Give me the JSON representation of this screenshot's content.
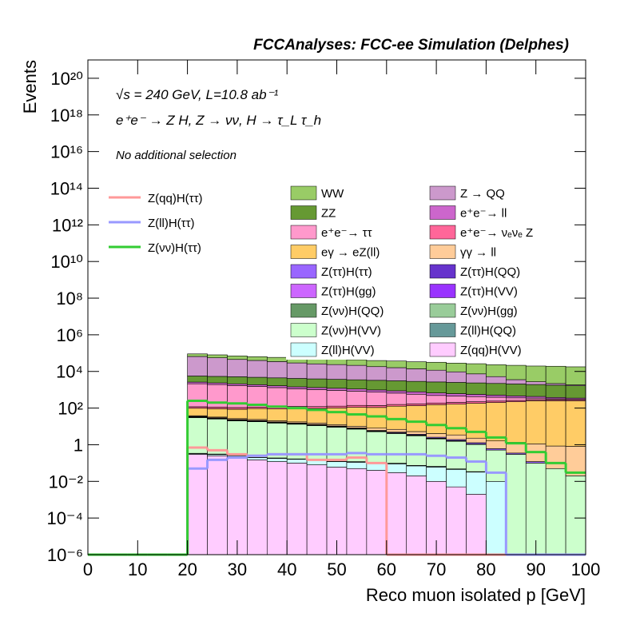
{
  "chart_data": {
    "type": "stacked-histogram",
    "title": "FCCAnalyses: FCC-ee Simulation (Delphes)",
    "annotations": [
      "√s = 240 GeV, L=10.8 ab⁻¹",
      "e⁺e⁻ → Z H, Z → νν, H → τ_L τ_h",
      "No additional selection"
    ],
    "x_label": "Reco muon isolated p [GeV]",
    "y_label": "Events",
    "log_y": true,
    "xlim": [
      0,
      100
    ],
    "xticks": [
      0,
      10,
      20,
      30,
      40,
      50,
      60,
      70,
      80,
      90,
      100
    ],
    "ylim": [
      1e-06,
      1e+21
    ],
    "yticks": [
      {
        "value": 1e-06,
        "label": "10⁻⁶"
      },
      {
        "value": 0.0001,
        "label": "10⁻⁴"
      },
      {
        "value": 0.01,
        "label": "10⁻²"
      },
      1,
      {
        "value": 100,
        "label": "10²"
      },
      {
        "value": 10000.0,
        "label": "10⁴"
      },
      {
        "value": 1000000.0,
        "label": "10⁶"
      },
      {
        "value": 100000000.0,
        "label": "10⁸"
      },
      {
        "value": 10000000000.0,
        "label": "10¹⁰"
      },
      {
        "value": 1000000000000.0,
        "label": "10¹²"
      },
      {
        "value": 100000000000000.0,
        "label": "10¹⁴"
      },
      {
        "value": 1e+16,
        "label": "10¹⁶"
      },
      {
        "value": 1e+18,
        "label": "10¹⁸"
      },
      {
        "value": 1e+20,
        "label": "10²⁰"
      }
    ],
    "bins": [
      0,
      4,
      8,
      12,
      16,
      20,
      24,
      28,
      32,
      36,
      40,
      44,
      48,
      52,
      56,
      60,
      64,
      68,
      72,
      76,
      80,
      84,
      88,
      92,
      96,
      100
    ],
    "series": [
      {
        "name": "WW",
        "color": "#99cc66",
        "values": [
          0,
          0,
          0,
          0,
          0,
          25000,
          25000,
          25000,
          24000,
          24000,
          23000,
          23000,
          22000,
          22000,
          21000,
          21000,
          20000,
          20000,
          19000,
          19000,
          18000,
          18000,
          17000,
          17000,
          16000
        ]
      },
      {
        "name": "Z → QQ",
        "color": "#cc99cc",
        "values": [
          0,
          0,
          0,
          0,
          0,
          60000,
          50000,
          40000,
          35000,
          30000,
          25000,
          22000,
          20000,
          18000,
          15000,
          13000,
          11000,
          9000,
          7000,
          5000,
          3000,
          1500,
          800,
          400,
          200
        ]
      },
      {
        "name": "ZZ",
        "color": "#669933",
        "values": [
          0,
          0,
          0,
          0,
          0,
          3000,
          3000,
          3000,
          2900,
          2800,
          2700,
          2600,
          2500,
          2400,
          2300,
          2200,
          2100,
          2000,
          1900,
          1800,
          1700,
          1600,
          1500,
          1400,
          1300
        ]
      },
      {
        "name": "e⁺e⁻→ ll",
        "color": "#cc66cc",
        "values": [
          0,
          0,
          0,
          0,
          0,
          500,
          450,
          400,
          380,
          350,
          320,
          300,
          280,
          260,
          240,
          220,
          200,
          180,
          160,
          140,
          120,
          100,
          80,
          60,
          50
        ]
      },
      {
        "name": "e⁺e⁻→ ττ",
        "color": "#ff99cc",
        "values": [
          0,
          0,
          0,
          0,
          0,
          2000,
          1800,
          1600,
          1400,
          1200,
          1000,
          900,
          800,
          700,
          600,
          500,
          400,
          300,
          250,
          200,
          150,
          100,
          60,
          30,
          10
        ]
      },
      {
        "name": "e⁺e⁻→ νₑνₑ Z",
        "color": "#ff6699",
        "values": [
          0,
          0,
          0,
          0,
          0,
          20,
          20,
          20,
          20,
          20,
          25,
          25,
          25,
          30,
          30,
          30,
          35,
          35,
          40,
          40,
          40,
          40,
          40,
          40,
          40
        ]
      },
      {
        "name": "eγ → eZ(ll)",
        "color": "#ffcc66",
        "values": [
          0,
          0,
          0,
          0,
          0,
          60,
          60,
          60,
          70,
          70,
          80,
          80,
          90,
          100,
          100,
          120,
          130,
          150,
          160,
          180,
          200,
          220,
          250,
          250,
          250
        ]
      },
      {
        "name": "γγ → ll",
        "color": "#ffcc99",
        "values": [
          0,
          0,
          0,
          0,
          0,
          3,
          3,
          3,
          3,
          2.5,
          2.5,
          2.5,
          2,
          2,
          2,
          2,
          1.5,
          1.5,
          1.5,
          1,
          1,
          1,
          1,
          0.8,
          0.8
        ]
      },
      {
        "name": "Z(ττ)H(ττ)",
        "color": "#9966ff",
        "values": [
          0,
          0,
          0,
          0,
          0,
          1.5,
          1.3,
          1.1,
          1,
          0.9,
          0.8,
          0.7,
          0.6,
          0.5,
          0.45,
          0.4,
          0.35,
          0.3,
          0.25,
          0.2,
          0.1,
          0.05,
          0.02,
          0,
          0
        ]
      },
      {
        "name": "Z(ττ)H(QQ)",
        "color": "#6633cc",
        "values": [
          0,
          0,
          0,
          0,
          0,
          0.3,
          0.2,
          0.2,
          0.15,
          0.15,
          0.1,
          0.1,
          0.08,
          0.06,
          0.05,
          0.05,
          0.04,
          0.03,
          0.02,
          0.01,
          0,
          0,
          0,
          0,
          0
        ]
      },
      {
        "name": "Z(ττ)H(gg)",
        "color": "#cc66ff",
        "values": [
          0,
          0,
          0,
          0,
          0,
          0.8,
          0.6,
          0.5,
          0.4,
          0.35,
          0.3,
          0.25,
          0.2,
          0.15,
          0.12,
          0.1,
          0.08,
          0.05,
          0.03,
          0.01,
          0,
          0,
          0,
          0,
          0
        ]
      },
      {
        "name": "Z(ττ)H(VV)",
        "color": "#9933ff",
        "values": [
          0,
          0,
          0,
          0,
          0,
          0.5,
          0.4,
          0.35,
          0.3,
          0.25,
          0.2,
          0.18,
          0.15,
          0.12,
          0.1,
          0.08,
          0.06,
          0.04,
          0.02,
          0.01,
          0,
          0,
          0,
          0,
          0
        ]
      },
      {
        "name": "Z(νν)H(QQ)",
        "color": "#669966",
        "values": [
          0,
          0,
          0,
          0,
          0,
          1.2,
          1,
          0.8,
          0.6,
          0.5,
          0.4,
          0.3,
          0.25,
          0.2,
          0.15,
          0.1,
          0.08,
          0.05,
          0.03,
          0.01,
          0,
          0,
          0,
          0,
          0
        ]
      },
      {
        "name": "Z(νν)H(gg)",
        "color": "#99cc99",
        "values": [
          0,
          0,
          0,
          0,
          0,
          0.6,
          0.5,
          0.4,
          0.3,
          0.25,
          0.2,
          0.15,
          0.1,
          0.08,
          0.06,
          0.05,
          0.04,
          0.03,
          0.02,
          0.01,
          0,
          0,
          0,
          0,
          0
        ]
      },
      {
        "name": "Z(νν)H(VV)",
        "color": "#ccffcc",
        "values": [
          0,
          0,
          0,
          0,
          0,
          30,
          25,
          20,
          18,
          15,
          13,
          11,
          9,
          7,
          5,
          4,
          3,
          2,
          1.5,
          1,
          0.5,
          0.3,
          0.1,
          0.05,
          0.02
        ]
      },
      {
        "name": "Z(ll)H(QQ)",
        "color": "#669999",
        "values": [
          0,
          0,
          0,
          0,
          0,
          0.01,
          0.02,
          0.01,
          0.005,
          0.01,
          0.008,
          0.01,
          0.006,
          0.01,
          0.005,
          0.008,
          0.004,
          0.006,
          0.003,
          0.002,
          0,
          0,
          0,
          0,
          0
        ]
      },
      {
        "name": "Z(ll)H(VV)",
        "color": "#ccffff",
        "values": [
          0,
          0,
          0,
          0,
          0,
          0.03,
          0.04,
          0.05,
          0.05,
          0.06,
          0.06,
          0.06,
          0.06,
          0.06,
          0.06,
          0.06,
          0.05,
          0.05,
          0.04,
          0.03,
          0.01,
          0,
          0,
          0,
          0
        ]
      },
      {
        "name": "Z(qq)H(VV)",
        "color": "#ffccff",
        "values": [
          0,
          0,
          0,
          0,
          0,
          0.3,
          0.25,
          0.2,
          0.15,
          0.12,
          0.1,
          0.08,
          0.06,
          0.05,
          0.04,
          0.03,
          0.02,
          0.01,
          0.005,
          0.002,
          0,
          0,
          0,
          0,
          0
        ]
      }
    ],
    "signals": [
      {
        "name": "Z(qq)H(ττ)",
        "color": "#ff9999",
        "values": [
          0,
          0,
          0,
          0,
          0,
          0.7,
          0.5,
          0.3,
          0.25,
          0.3,
          0.3,
          0.15,
          0.15,
          0.2,
          0.1,
          0,
          0,
          0,
          0,
          0,
          0,
          0,
          0,
          0,
          0
        ]
      },
      {
        "name": "Z(ll)H(ττ)",
        "color": "#9999ff",
        "values": [
          0,
          0,
          0,
          0,
          0,
          0.05,
          0.15,
          0.2,
          0.25,
          0.3,
          0.3,
          0.3,
          0.3,
          0.35,
          0.3,
          0.3,
          0.3,
          0.25,
          0.2,
          0.12,
          0.03,
          0,
          0,
          0,
          0
        ]
      },
      {
        "name": "Z(νν)H(ττ)",
        "color": "#33cc33",
        "values": [
          0,
          0,
          0,
          0,
          0,
          250,
          200,
          180,
          150,
          120,
          100,
          80,
          60,
          45,
          35,
          25,
          18,
          12,
          8,
          5,
          2.5,
          1.2,
          0.4,
          0.1,
          0.03
        ]
      }
    ]
  }
}
